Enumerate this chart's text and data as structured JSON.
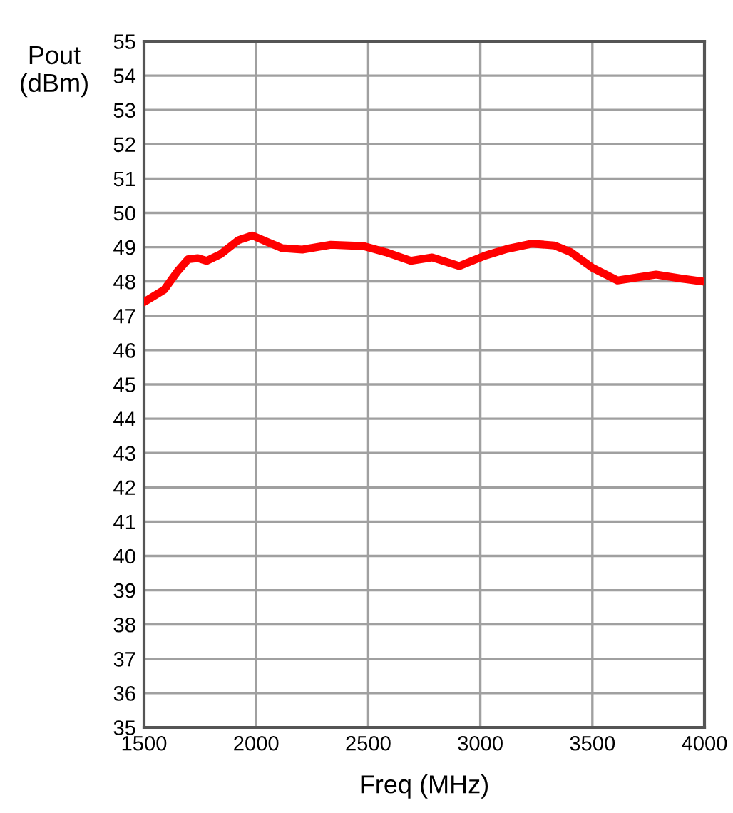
{
  "chart_data": {
    "type": "line",
    "xlabel": "Freq (MHz)",
    "ylabel": "Pout\n(dBm)",
    "series": [
      {
        "color": "#ff0000",
        "x": [
          1500,
          1590,
          1650,
          1697,
          1740,
          1780,
          1843,
          1920,
          1983,
          2050,
          2117,
          2206,
          2333,
          2480,
          2580,
          2690,
          2785,
          2906,
          3020,
          3120,
          3230,
          3330,
          3402,
          3500,
          3612,
          3700,
          3784,
          3900,
          3994
        ],
        "values": [
          47.4,
          47.76,
          48.3,
          48.65,
          48.68,
          48.6,
          48.8,
          49.2,
          49.34,
          49.15,
          48.97,
          48.93,
          49.07,
          49.03,
          48.85,
          48.6,
          48.7,
          48.45,
          48.75,
          48.95,
          49.1,
          49.05,
          48.86,
          48.4,
          48.03,
          48.12,
          48.2,
          48.08,
          48.0
        ]
      }
    ],
    "xlim": [
      1500,
      4000
    ],
    "xticks": [
      1500,
      2000,
      2500,
      3000,
      3500,
      4000
    ],
    "ylim": [
      35,
      55
    ],
    "yticks": [
      35,
      36,
      37,
      38,
      39,
      40,
      41,
      42,
      43,
      44,
      45,
      46,
      47,
      48,
      49,
      50,
      51,
      52,
      53,
      54,
      55
    ],
    "grid": true,
    "marker": "none",
    "line_style": "solid"
  }
}
